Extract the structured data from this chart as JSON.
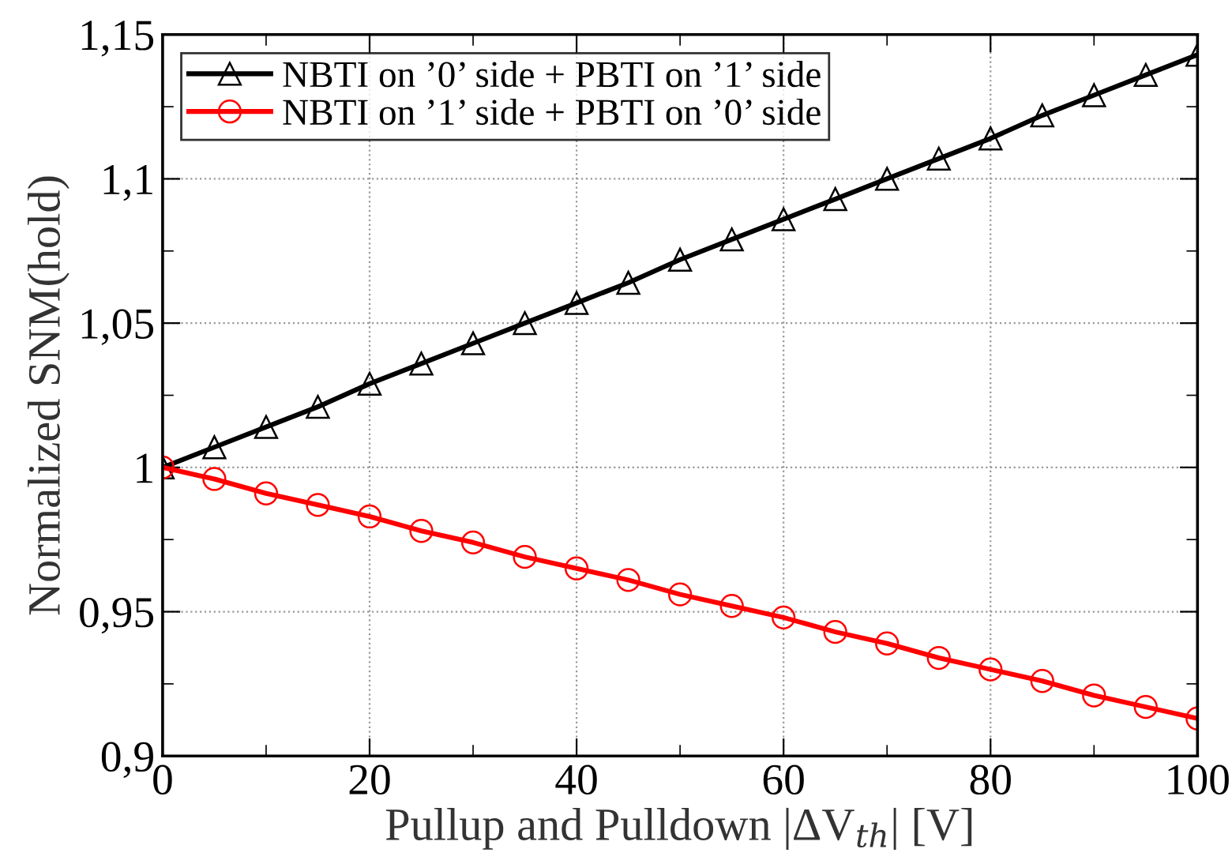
{
  "chart_data": {
    "type": "line",
    "xlabel": "Pullup and Pulldown |ΔV$_{th}$| [V]",
    "ylabel": "Normalized SNM(hold)",
    "x": [
      0,
      5,
      10,
      15,
      20,
      25,
      30,
      35,
      40,
      45,
      50,
      55,
      60,
      65,
      70,
      75,
      80,
      85,
      90,
      95,
      100
    ],
    "series": [
      {
        "name": "NBTI on ’0’ side + PBTI on ’1’ side",
        "color": "#000000",
        "marker": "triangle",
        "values": [
          1,
          1.007,
          1.014,
          1.021,
          1.029,
          1.036,
          1.043,
          1.05,
          1.057,
          1.064,
          1.072,
          1.079,
          1.086,
          1.093,
          1.1,
          1.107,
          1.114,
          1.122,
          1.129,
          1.136,
          1.143
        ]
      },
      {
        "name": "NBTI on ’1’ side + PBTI on ’0’ side",
        "color": "#ff0000",
        "marker": "circle",
        "values": [
          1,
          0.996,
          0.991,
          0.987,
          0.983,
          0.978,
          0.974,
          0.969,
          0.965,
          0.961,
          0.956,
          0.952,
          0.948,
          0.943,
          0.939,
          0.934,
          0.93,
          0.926,
          0.921,
          0.917,
          0.913
        ]
      }
    ],
    "xlim": [
      0,
      100
    ],
    "xticks": [
      0,
      {
        "value": 10,
        "label": null
      },
      20,
      {
        "value": 30,
        "label": null
      },
      40,
      {
        "value": 50,
        "label": null
      },
      60,
      {
        "value": 70,
        "label": null
      },
      80,
      {
        "value": 90,
        "label": null
      },
      100
    ],
    "ylim": [
      0.9,
      1.15
    ],
    "yticks": [
      {
        "value": 0.9,
        "label": "0,9"
      },
      {
        "value": 0.925,
        "label": null
      },
      {
        "value": 0.95,
        "label": "0,95"
      },
      {
        "value": 0.975,
        "label": null
      },
      {
        "value": 1,
        "label": "1"
      },
      {
        "value": 1.025,
        "label": null
      },
      {
        "value": 1.05,
        "label": "1,05"
      },
      {
        "value": 1.075,
        "label": null
      },
      {
        "value": 1.1,
        "label": "1,1"
      },
      {
        "value": 1.125,
        "label": null
      },
      {
        "value": 1.15,
        "label": "1,15"
      }
    ],
    "grid": true,
    "legend": "top left",
    "line_style": "solid"
  }
}
